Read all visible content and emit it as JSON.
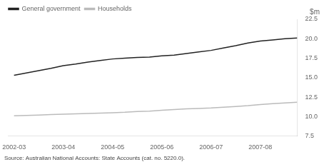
{
  "chart_data": {
    "type": "line",
    "ylabel": "$m",
    "annotations": [
      "Source: Australian National Accounts: State Accounts (cat. no. 5220.0)."
    ],
    "x": [
      0,
      1,
      2,
      3,
      4,
      5,
      6,
      7,
      8,
      9,
      10,
      11,
      12,
      13,
      14,
      15,
      16,
      17,
      18,
      19,
      20,
      21,
      22,
      23
    ],
    "xlim": [
      -0.5,
      23.0
    ],
    "xticks": [
      {
        "value": 0,
        "label": "2002-03"
      },
      {
        "value": 4,
        "label": "2003-04"
      },
      {
        "value": 8,
        "label": "2004-05"
      },
      {
        "value": 12,
        "label": "2005-06"
      },
      {
        "value": 16,
        "label": "2006-07"
      },
      {
        "value": 20,
        "label": "2007-08"
      }
    ],
    "ylim": [
      7.5,
      22.5
    ],
    "yticks": [
      7.5,
      {
        "value": 10,
        "label": "10.0"
      },
      12.5,
      {
        "value": 15,
        "label": "15.0"
      },
      17.5,
      {
        "value": 20,
        "label": "20.0"
      },
      22.5
    ],
    "grid": false,
    "legend": "top",
    "series": [
      {
        "name": "General government",
        "color": "#222222",
        "values": [
          15.3,
          15.6,
          15.9,
          16.2,
          16.55,
          16.75,
          17.0,
          17.2,
          17.4,
          17.5,
          17.6,
          17.65,
          17.8,
          17.9,
          18.1,
          18.3,
          18.5,
          18.8,
          19.1,
          19.45,
          19.7,
          19.85,
          20.0,
          20.1
        ]
      },
      {
        "name": "Households",
        "color": "#bbbbbb",
        "values": [
          10.1,
          10.15,
          10.2,
          10.25,
          10.3,
          10.35,
          10.4,
          10.45,
          10.5,
          10.55,
          10.65,
          10.7,
          10.8,
          10.9,
          11.0,
          11.05,
          11.1,
          11.2,
          11.3,
          11.4,
          11.55,
          11.65,
          11.75,
          11.85
        ]
      }
    ]
  }
}
